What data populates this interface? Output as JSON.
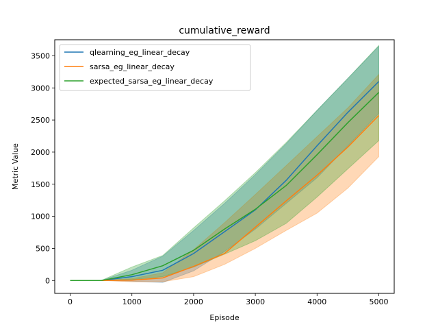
{
  "chart_data": {
    "type": "line",
    "title": "cumulative_reward",
    "xlabel": "Episode",
    "ylabel": "Metric Value",
    "xlim": [
      -250,
      5250
    ],
    "ylim": [
      -200,
      3750
    ],
    "xticks": [
      0,
      1000,
      2000,
      3000,
      4000,
      5000
    ],
    "yticks": [
      0,
      500,
      1000,
      1500,
      2000,
      2500,
      3000,
      3500
    ],
    "grid": false,
    "legend_position": "upper-left",
    "x": [
      0,
      500,
      1000,
      1500,
      2000,
      2500,
      3000,
      3500,
      4000,
      4500,
      5000
    ],
    "series": [
      {
        "name": "qlearning_eg_linear_decay",
        "color": "#1f77b4",
        "values": [
          0,
          0,
          60,
          160,
          420,
          760,
          1100,
          1560,
          2100,
          2620,
          3100
        ],
        "lower": [
          0,
          0,
          -10,
          -30,
          150,
          450,
          800,
          1200,
          1600,
          2100,
          2600
        ],
        "upper": [
          0,
          0,
          160,
          380,
          780,
          1200,
          1650,
          2130,
          2650,
          3150,
          3650
        ]
      },
      {
        "name": "sarsa_eg_linear_decay",
        "color": "#ff7f0e",
        "values": [
          0,
          0,
          5,
          40,
          220,
          420,
          830,
          1240,
          1640,
          2080,
          2570
        ],
        "lower": [
          0,
          0,
          -20,
          -20,
          60,
          250,
          500,
          780,
          1050,
          1440,
          1930
        ],
        "upper": [
          0,
          0,
          30,
          120,
          480,
          900,
          1340,
          1790,
          2240,
          2690,
          3210
        ]
      },
      {
        "name": "expected_sarsa_eg_linear_decay",
        "color": "#2ca02c",
        "values": [
          0,
          0,
          90,
          230,
          470,
          800,
          1110,
          1480,
          1960,
          2460,
          2930
        ],
        "lower": [
          0,
          0,
          15,
          60,
          210,
          410,
          620,
          890,
          1300,
          1740,
          2180
        ],
        "upper": [
          0,
          0,
          210,
          390,
          820,
          1240,
          1680,
          2150,
          2650,
          3150,
          3660
        ]
      }
    ]
  }
}
